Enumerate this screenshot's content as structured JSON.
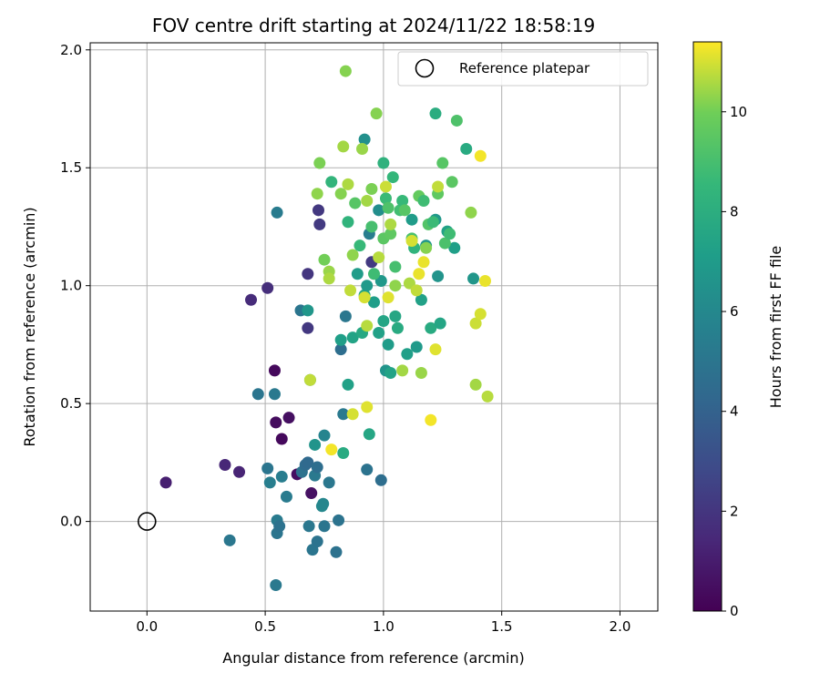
{
  "chart_data": {
    "type": "scatter",
    "title": "FOV centre drift starting at 2024/11/22 18:58:19",
    "xlabel": "Angular distance from reference (arcmin)",
    "ylabel": "Rotation from reference (arcmin)",
    "xlim": [
      -0.24,
      2.16
    ],
    "ylim": [
      -0.38,
      2.03
    ],
    "x_ticks": [
      "0.0",
      "0.5",
      "1.0",
      "1.5",
      "2.0"
    ],
    "y_ticks": [
      "0.0",
      "0.5",
      "1.0",
      "1.5",
      "2.0"
    ],
    "grid": true,
    "legend": {
      "position": "top-right",
      "entries": [
        "Reference platepar"
      ]
    },
    "reference_point": {
      "x": 0.0,
      "y": 0.0,
      "label": "Reference platepar"
    },
    "colorbar": {
      "label": "Hours from first FF file",
      "range": [
        0,
        11.4
      ],
      "ticks": [
        "0",
        "2",
        "4",
        "6",
        "8",
        "10"
      ],
      "colormap": "viridis"
    },
    "series": [
      {
        "color_by": "hours",
        "points": [
          {
            "x": 0.08,
            "y": 0.165,
            "h": 1.1
          },
          {
            "x": 0.33,
            "y": 0.24,
            "h": 1.4
          },
          {
            "x": 0.39,
            "y": 0.21,
            "h": 1.3
          },
          {
            "x": 0.44,
            "y": 0.94,
            "h": 1.6
          },
          {
            "x": 0.51,
            "y": 0.99,
            "h": 1.7
          },
          {
            "x": 0.54,
            "y": 0.64,
            "h": 0.3
          },
          {
            "x": 0.545,
            "y": 0.42,
            "h": 0.4
          },
          {
            "x": 0.6,
            "y": 0.44,
            "h": 0.5
          },
          {
            "x": 0.57,
            "y": 0.35,
            "h": 0.3
          },
          {
            "x": 0.635,
            "y": 0.2,
            "h": 0.5
          },
          {
            "x": 0.695,
            "y": 0.12,
            "h": 0.6
          },
          {
            "x": 0.68,
            "y": 1.05,
            "h": 2.0
          },
          {
            "x": 0.68,
            "y": 0.82,
            "h": 2.1
          },
          {
            "x": 0.725,
            "y": 1.32,
            "h": 2.1
          },
          {
            "x": 0.73,
            "y": 1.26,
            "h": 2.2
          },
          {
            "x": 0.95,
            "y": 1.1,
            "h": 2.2
          },
          {
            "x": 0.47,
            "y": 0.54,
            "h": 5.0
          },
          {
            "x": 0.54,
            "y": 0.54,
            "h": 5.2
          },
          {
            "x": 0.55,
            "y": 1.31,
            "h": 5.3
          },
          {
            "x": 0.65,
            "y": 0.895,
            "h": 5.0
          },
          {
            "x": 0.35,
            "y": -0.08,
            "h": 5.1
          },
          {
            "x": 0.51,
            "y": 0.225,
            "h": 5.0
          },
          {
            "x": 0.52,
            "y": 0.165,
            "h": 5.5
          },
          {
            "x": 0.55,
            "y": 0.005,
            "h": 5.3
          },
          {
            "x": 0.55,
            "y": -0.05,
            "h": 5.0
          },
          {
            "x": 0.56,
            "y": -0.02,
            "h": 4.8
          },
          {
            "x": 0.545,
            "y": -0.27,
            "h": 5.2
          },
          {
            "x": 0.57,
            "y": 0.19,
            "h": 5.4
          },
          {
            "x": 0.59,
            "y": 0.105,
            "h": 5.3
          },
          {
            "x": 0.655,
            "y": 0.21,
            "h": 4.8
          },
          {
            "x": 0.67,
            "y": 0.24,
            "h": 4.5
          },
          {
            "x": 0.68,
            "y": 0.25,
            "h": 4.4
          },
          {
            "x": 0.685,
            "y": -0.02,
            "h": 5.1
          },
          {
            "x": 0.7,
            "y": -0.12,
            "h": 5.0
          },
          {
            "x": 0.71,
            "y": 0.195,
            "h": 5.2
          },
          {
            "x": 0.72,
            "y": 0.23,
            "h": 4.6
          },
          {
            "x": 0.72,
            "y": -0.085,
            "h": 4.9
          },
          {
            "x": 0.74,
            "y": 0.065,
            "h": 6.0
          },
          {
            "x": 0.745,
            "y": 0.075,
            "h": 5.9
          },
          {
            "x": 0.75,
            "y": 0.365,
            "h": 5.8
          },
          {
            "x": 0.75,
            "y": -0.02,
            "h": 5.0
          },
          {
            "x": 0.77,
            "y": 0.165,
            "h": 5.1
          },
          {
            "x": 0.8,
            "y": -0.13,
            "h": 4.8
          },
          {
            "x": 0.81,
            "y": 0.005,
            "h": 4.9
          },
          {
            "x": 0.82,
            "y": 0.73,
            "h": 4.6
          },
          {
            "x": 0.83,
            "y": 0.455,
            "h": 5.2
          },
          {
            "x": 0.84,
            "y": 0.87,
            "h": 5.1
          },
          {
            "x": 0.93,
            "y": 0.22,
            "h": 4.9
          },
          {
            "x": 0.94,
            "y": 1.22,
            "h": 5.5
          },
          {
            "x": 0.99,
            "y": 0.175,
            "h": 4.6
          },
          {
            "x": 0.98,
            "y": 1.32,
            "h": 6.3
          },
          {
            "x": 0.71,
            "y": 0.325,
            "h": 6.6
          },
          {
            "x": 0.68,
            "y": 0.895,
            "h": 6.7
          },
          {
            "x": 0.69,
            "y": 0.6,
            "h": 6.5
          },
          {
            "x": 0.83,
            "y": 0.29,
            "h": 7.8
          },
          {
            "x": 0.94,
            "y": 0.37,
            "h": 7.6
          },
          {
            "x": 0.82,
            "y": 0.77,
            "h": 7.2
          },
          {
            "x": 0.85,
            "y": 0.58,
            "h": 7.3
          },
          {
            "x": 0.87,
            "y": 0.78,
            "h": 7.4
          },
          {
            "x": 0.89,
            "y": 1.05,
            "h": 7.0
          },
          {
            "x": 0.91,
            "y": 0.8,
            "h": 7.7
          },
          {
            "x": 0.92,
            "y": 0.96,
            "h": 7.5
          },
          {
            "x": 0.93,
            "y": 1.0,
            "h": 6.9
          },
          {
            "x": 0.96,
            "y": 0.93,
            "h": 7.1
          },
          {
            "x": 0.98,
            "y": 0.8,
            "h": 7.3
          },
          {
            "x": 0.99,
            "y": 1.02,
            "h": 6.8
          },
          {
            "x": 1.0,
            "y": 0.85,
            "h": 7.5
          },
          {
            "x": 1.01,
            "y": 0.64,
            "h": 6.6
          },
          {
            "x": 1.02,
            "y": 0.75,
            "h": 7.0
          },
          {
            "x": 1.03,
            "y": 0.63,
            "h": 7.4
          },
          {
            "x": 1.05,
            "y": 0.87,
            "h": 7.6
          },
          {
            "x": 1.06,
            "y": 0.82,
            "h": 7.8
          },
          {
            "x": 1.1,
            "y": 0.71,
            "h": 7.2
          },
          {
            "x": 1.14,
            "y": 0.74,
            "h": 6.9
          },
          {
            "x": 1.16,
            "y": 0.94,
            "h": 7.3
          },
          {
            "x": 1.18,
            "y": 1.17,
            "h": 6.7
          },
          {
            "x": 1.2,
            "y": 0.82,
            "h": 7.8
          },
          {
            "x": 0.92,
            "y": 1.62,
            "h": 6.4
          },
          {
            "x": 1.12,
            "y": 1.28,
            "h": 7.0
          },
          {
            "x": 1.22,
            "y": 1.28,
            "h": 6.8
          },
          {
            "x": 1.23,
            "y": 1.04,
            "h": 6.6
          },
          {
            "x": 1.24,
            "y": 0.84,
            "h": 7.5
          },
          {
            "x": 1.27,
            "y": 1.23,
            "h": 7.3
          },
          {
            "x": 1.3,
            "y": 1.16,
            "h": 7.2
          },
          {
            "x": 1.35,
            "y": 1.58,
            "h": 7.8
          },
          {
            "x": 1.38,
            "y": 1.03,
            "h": 6.7
          },
          {
            "x": 1.22,
            "y": 1.73,
            "h": 7.9
          },
          {
            "x": 1.0,
            "y": 1.52,
            "h": 8.2
          },
          {
            "x": 0.78,
            "y": 1.44,
            "h": 8.4
          },
          {
            "x": 0.85,
            "y": 1.27,
            "h": 8.3
          },
          {
            "x": 0.88,
            "y": 1.35,
            "h": 9.4
          },
          {
            "x": 0.9,
            "y": 1.17,
            "h": 8.6
          },
          {
            "x": 0.95,
            "y": 1.25,
            "h": 9.0
          },
          {
            "x": 0.96,
            "y": 1.05,
            "h": 8.8
          },
          {
            "x": 1.0,
            "y": 1.2,
            "h": 9.5
          },
          {
            "x": 1.01,
            "y": 1.37,
            "h": 8.7
          },
          {
            "x": 1.02,
            "y": 1.33,
            "h": 9.2
          },
          {
            "x": 1.03,
            "y": 1.22,
            "h": 9.6
          },
          {
            "x": 1.04,
            "y": 1.46,
            "h": 8.5
          },
          {
            "x": 1.05,
            "y": 1.08,
            "h": 9.0
          },
          {
            "x": 1.07,
            "y": 1.32,
            "h": 8.9
          },
          {
            "x": 1.08,
            "y": 1.36,
            "h": 8.6
          },
          {
            "x": 1.09,
            "y": 1.32,
            "h": 9.4
          },
          {
            "x": 1.12,
            "y": 1.2,
            "h": 9.1
          },
          {
            "x": 1.13,
            "y": 1.16,
            "h": 8.3
          },
          {
            "x": 1.15,
            "y": 1.38,
            "h": 9.7
          },
          {
            "x": 1.17,
            "y": 1.36,
            "h": 8.8
          },
          {
            "x": 1.19,
            "y": 1.26,
            "h": 9.3
          },
          {
            "x": 1.21,
            "y": 1.27,
            "h": 8.7
          },
          {
            "x": 1.23,
            "y": 1.39,
            "h": 9.6
          },
          {
            "x": 1.25,
            "y": 1.52,
            "h": 9.4
          },
          {
            "x": 1.26,
            "y": 1.18,
            "h": 9.1
          },
          {
            "x": 1.28,
            "y": 1.22,
            "h": 8.8
          },
          {
            "x": 1.29,
            "y": 1.44,
            "h": 9.5
          },
          {
            "x": 1.31,
            "y": 1.7,
            "h": 9.2
          },
          {
            "x": 0.72,
            "y": 1.39,
            "h": 10.3
          },
          {
            "x": 0.73,
            "y": 1.52,
            "h": 10.1
          },
          {
            "x": 0.75,
            "y": 1.11,
            "h": 10.0
          },
          {
            "x": 0.77,
            "y": 1.06,
            "h": 10.4
          },
          {
            "x": 0.77,
            "y": 1.03,
            "h": 10.6
          },
          {
            "x": 0.82,
            "y": 1.39,
            "h": 10.2
          },
          {
            "x": 0.83,
            "y": 1.59,
            "h": 10.5
          },
          {
            "x": 0.84,
            "y": 1.91,
            "h": 10.2
          },
          {
            "x": 0.85,
            "y": 1.43,
            "h": 10.6
          },
          {
            "x": 0.86,
            "y": 0.98,
            "h": 10.8
          },
          {
            "x": 0.87,
            "y": 1.13,
            "h": 10.3
          },
          {
            "x": 0.91,
            "y": 1.58,
            "h": 10.4
          },
          {
            "x": 0.92,
            "y": 0.95,
            "h": 11.0
          },
          {
            "x": 0.93,
            "y": 0.83,
            "h": 10.7
          },
          {
            "x": 0.93,
            "y": 1.36,
            "h": 10.5
          },
          {
            "x": 0.95,
            "y": 1.41,
            "h": 10.1
          },
          {
            "x": 0.97,
            "y": 1.73,
            "h": 10.2
          },
          {
            "x": 0.98,
            "y": 1.12,
            "h": 10.7
          },
          {
            "x": 1.01,
            "y": 1.42,
            "h": 10.9
          },
          {
            "x": 1.02,
            "y": 0.95,
            "h": 11.1
          },
          {
            "x": 1.03,
            "y": 1.26,
            "h": 10.6
          },
          {
            "x": 1.05,
            "y": 1.0,
            "h": 10.3
          },
          {
            "x": 1.08,
            "y": 0.64,
            "h": 10.5
          },
          {
            "x": 1.11,
            "y": 1.01,
            "h": 10.6
          },
          {
            "x": 1.12,
            "y": 1.19,
            "h": 11.0
          },
          {
            "x": 1.14,
            "y": 0.98,
            "h": 10.8
          },
          {
            "x": 1.15,
            "y": 1.05,
            "h": 11.2
          },
          {
            "x": 1.16,
            "y": 0.63,
            "h": 10.4
          },
          {
            "x": 1.17,
            "y": 1.1,
            "h": 11.2
          },
          {
            "x": 1.18,
            "y": 1.16,
            "h": 10.2
          },
          {
            "x": 1.2,
            "y": 0.43,
            "h": 11.3
          },
          {
            "x": 1.22,
            "y": 0.73,
            "h": 11.1
          },
          {
            "x": 1.23,
            "y": 1.42,
            "h": 10.8
          },
          {
            "x": 1.37,
            "y": 1.31,
            "h": 10.3
          },
          {
            "x": 1.39,
            "y": 0.84,
            "h": 10.9
          },
          {
            "x": 1.39,
            "y": 0.58,
            "h": 10.5
          },
          {
            "x": 1.41,
            "y": 1.55,
            "h": 11.3
          },
          {
            "x": 1.41,
            "y": 0.88,
            "h": 11.0
          },
          {
            "x": 1.43,
            "y": 1.02,
            "h": 11.2
          },
          {
            "x": 1.44,
            "y": 0.53,
            "h": 10.7
          },
          {
            "x": 0.69,
            "y": 0.6,
            "h": 10.8
          },
          {
            "x": 0.78,
            "y": 0.305,
            "h": 11.3
          },
          {
            "x": 0.87,
            "y": 0.455,
            "h": 11.0
          },
          {
            "x": 0.93,
            "y": 0.485,
            "h": 11.1
          }
        ]
      }
    ]
  }
}
